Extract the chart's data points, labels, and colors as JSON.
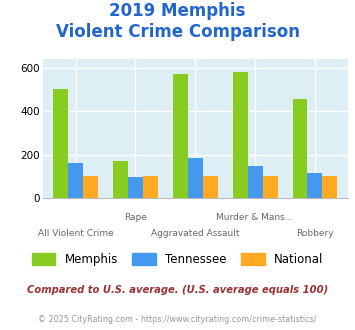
{
  "title_line1": "2019 Memphis",
  "title_line2": "Violent Crime Comparison",
  "title_color": "#2266cc",
  "categories": [
    "All Violent Crime",
    "Rape",
    "Aggravated Assault",
    "Murder & Mans...",
    "Robbery"
  ],
  "row1_labels": [
    "",
    "Rape",
    "",
    "Murder & Mans...",
    ""
  ],
  "row2_labels": [
    "All Violent Crime",
    "",
    "Aggravated Assault",
    "",
    "Robbery"
  ],
  "memphis_values": [
    505,
    173,
    572,
    583,
    455
  ],
  "tennessee_values": [
    162,
    97,
    187,
    148,
    115
  ],
  "national_values": [
    100,
    100,
    100,
    100,
    100
  ],
  "memphis_color": "#88cc22",
  "tennessee_color": "#4499ee",
  "national_color": "#ffaa22",
  "ylim": [
    0,
    640
  ],
  "yticks": [
    0,
    200,
    400,
    600
  ],
  "plot_bg": "#ddeef5",
  "grid_color": "#ffffff",
  "legend_labels": [
    "Memphis",
    "Tennessee",
    "National"
  ],
  "footnote1": "Compared to U.S. average. (U.S. average equals 100)",
  "footnote2": "© 2025 CityRating.com - https://www.cityrating.com/crime-statistics/",
  "footnote1_color": "#993333",
  "footnote2_color": "#999999",
  "bar_width": 0.25
}
